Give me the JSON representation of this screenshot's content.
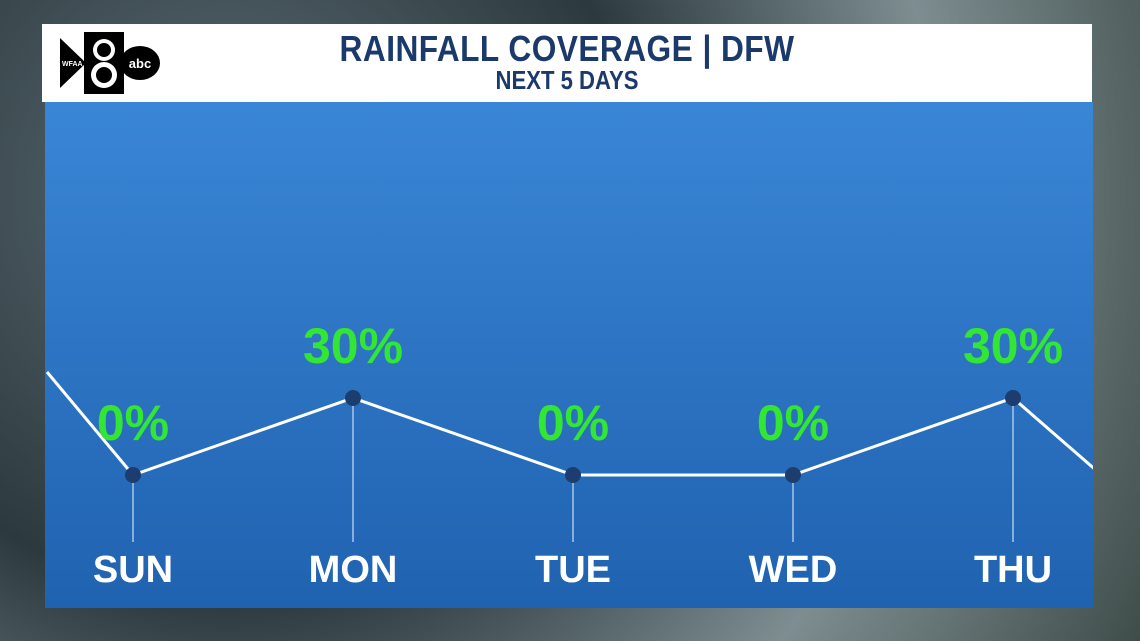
{
  "header": {
    "title": "RAINFALL COVERAGE | DFW",
    "subtitle": "NEXT 5 DAYS",
    "logo_text": "WFAA 8 abc"
  },
  "colors": {
    "title": "#1b3a6b",
    "label": "#33e633",
    "line": "#ffffff",
    "dot": "#1c3d6e"
  },
  "chart_data": {
    "type": "line",
    "title": "RAINFALL COVERAGE | DFW",
    "subtitle": "NEXT 5 DAYS",
    "categories": [
      "SUN",
      "MON",
      "TUE",
      "WED",
      "THU"
    ],
    "values": [
      0,
      30,
      0,
      0,
      30
    ],
    "labels": [
      "0%",
      "30%",
      "0%",
      "0%",
      "30%"
    ],
    "ylim": [
      0,
      30
    ],
    "grid": false
  }
}
